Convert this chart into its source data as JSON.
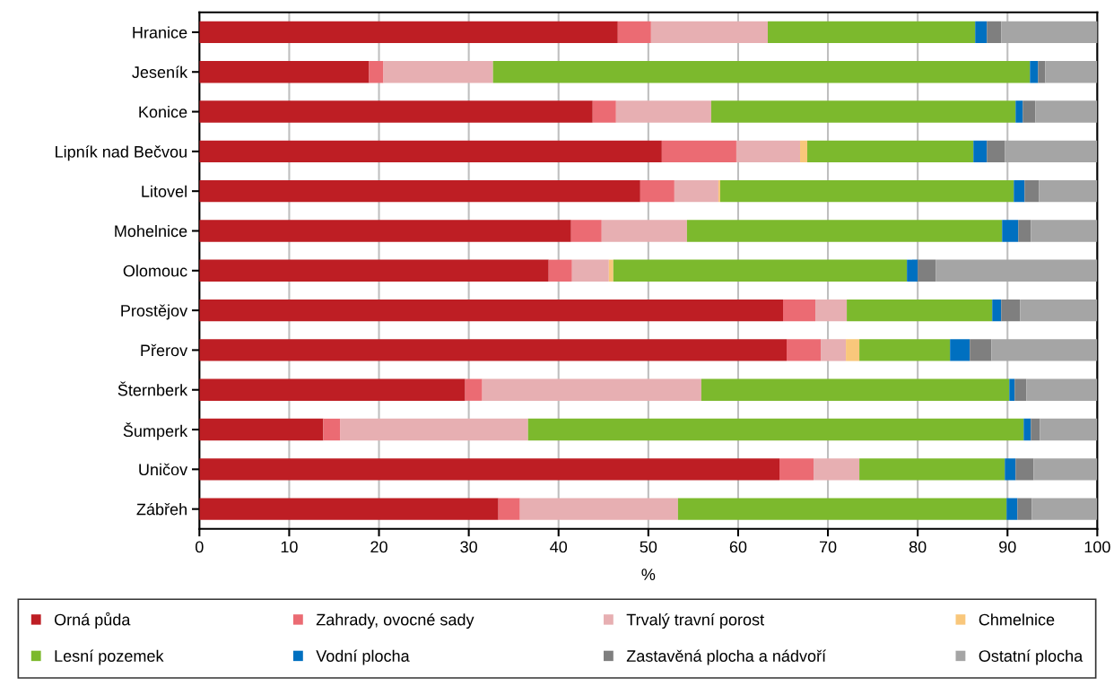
{
  "chart_data": {
    "type": "bar",
    "orientation": "horizontal",
    "stacked": true,
    "xlabel": "%",
    "categories": [
      "Hranice",
      "Jeseník",
      "Konice",
      "Lipník nad Bečvou",
      "Litovel",
      "Mohelnice",
      "Olomouc",
      "Prostějov",
      "Přerov",
      "Šternberk",
      "Šumperk",
      "Uničov",
      "Zábřeh"
    ],
    "series": [
      {
        "name": "Orná půda",
        "color": "#be1e24",
        "values": [
          46.6,
          18.9,
          43.8,
          51.5,
          49.1,
          41.4,
          38.9,
          65.0,
          65.4,
          29.6,
          13.8,
          64.6,
          33.3
        ]
      },
      {
        "name": "Zahrady, ovocné sady",
        "color": "#eb6b73",
        "values": [
          3.7,
          1.6,
          2.6,
          8.3,
          3.8,
          3.4,
          2.6,
          3.6,
          3.8,
          1.9,
          1.9,
          3.8,
          2.4
        ]
      },
      {
        "name": "Trvalý travní porost",
        "color": "#e7afb2",
        "values": [
          13.0,
          12.2,
          10.6,
          7.1,
          4.9,
          9.5,
          4.1,
          3.5,
          2.8,
          24.4,
          20.9,
          5.1,
          17.6
        ]
      },
      {
        "name": "Chmelnice",
        "color": "#f9c77b",
        "values": [
          0,
          0,
          0,
          0.8,
          0.2,
          0,
          0.5,
          0,
          1.5,
          0,
          0,
          0,
          0
        ]
      },
      {
        "name": "Lesní pozemek",
        "color": "#7cb92d",
        "values": [
          23.1,
          59.8,
          33.9,
          18.5,
          32.7,
          35.1,
          32.7,
          16.2,
          10.1,
          34.3,
          55.2,
          16.2,
          36.6
        ]
      },
      {
        "name": "Vodní plocha",
        "color": "#0070c0",
        "values": [
          1.3,
          0.9,
          0.8,
          1.5,
          1.2,
          1.8,
          1.2,
          1.0,
          2.2,
          0.6,
          0.8,
          1.2,
          1.2
        ]
      },
      {
        "name": "Zastavěná plocha a nádvoří",
        "color": "#7f7f7f",
        "values": [
          1.6,
          0.8,
          1.4,
          2.0,
          1.6,
          1.4,
          2.0,
          2.1,
          2.4,
          1.3,
          1.0,
          2.0,
          1.6
        ]
      },
      {
        "name": "Ostatní plocha",
        "color": "#a5a5a5",
        "values": [
          10.8,
          5.8,
          6.9,
          10.3,
          6.5,
          7.4,
          18.0,
          8.6,
          11.8,
          7.9,
          6.4,
          7.1,
          7.3
        ]
      }
    ],
    "xlim": [
      0,
      100
    ],
    "xticks": [
      0,
      10,
      20,
      30,
      40,
      50,
      60,
      70,
      80,
      90,
      100
    ],
    "grid": "x",
    "legend": "bottom"
  }
}
